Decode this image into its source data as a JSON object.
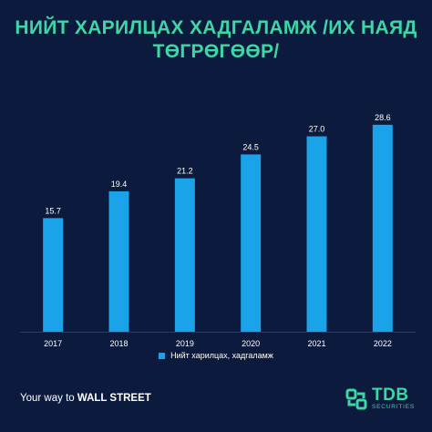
{
  "title": {
    "line1": "НИЙТ ХАРИЛЦАХ ХАДГАЛАМЖ /ИХ НАЯД",
    "line2": "ТӨГРӨГӨӨР/"
  },
  "colors": {
    "background": "#0b1a3d",
    "title": "#3fd6a6",
    "bar": "#1aa3e8",
    "text": "#ffffff"
  },
  "chart_data": {
    "type": "bar",
    "categories": [
      "2017",
      "2018",
      "2019",
      "2020",
      "2021",
      "2022"
    ],
    "series": [
      {
        "name": "Нийт харилцах, хадгаламж",
        "values": [
          15.7,
          19.4,
          21.2,
          24.5,
          27.0,
          28.6
        ]
      }
    ],
    "data_labels": [
      "15.7",
      "19.4",
      "21.2",
      "24.5",
      "27.0",
      "28.6"
    ],
    "ylim": [
      0,
      34
    ],
    "grid": false,
    "legend_position": "bottom"
  },
  "legend": {
    "label": "Нийт харилцах, хадгаламж"
  },
  "footer": {
    "tagline_prefix": "Your way to",
    "tagline_bold": "WALL STREET"
  },
  "logo": {
    "name": "TDB",
    "sub": "SECURITIES",
    "icon": "tdb-logo-icon"
  }
}
